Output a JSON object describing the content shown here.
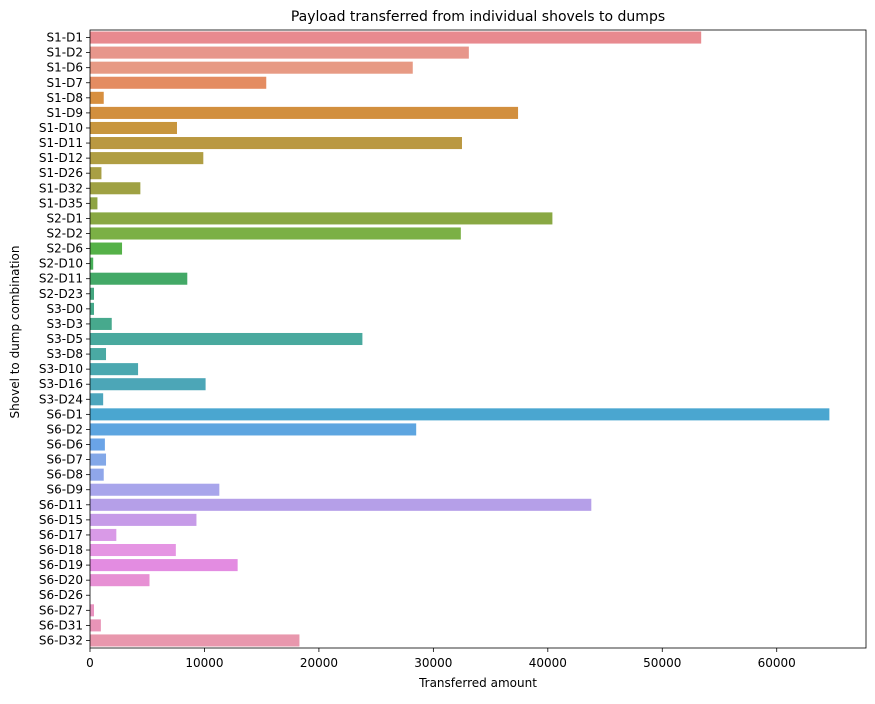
{
  "chart_data": {
    "type": "bar",
    "orientation": "horizontal",
    "title": "Payload transferred from individual shovels to dumps",
    "xlabel": "Transferred amount",
    "ylabel": "Shovel to dump combination",
    "xlim": [
      0,
      67800
    ],
    "x_ticks": [
      "0",
      "10000",
      "20000",
      "30000",
      "40000",
      "50000",
      "60000"
    ],
    "x_tick_values": [
      0,
      10000,
      20000,
      30000,
      40000,
      50000,
      60000
    ],
    "grid": false,
    "legend": "none",
    "categories": [
      "S1-D1",
      "S1-D2",
      "S1-D6",
      "S1-D7",
      "S1-D8",
      "S1-D9",
      "S1-D10",
      "S1-D11",
      "S1-D12",
      "S1-D26",
      "S1-D32",
      "S1-D35",
      "S2-D1",
      "S2-D2",
      "S2-D6",
      "S2-D10",
      "S2-D11",
      "S2-D23",
      "S3-D0",
      "S3-D3",
      "S3-D5",
      "S3-D8",
      "S3-D10",
      "S3-D16",
      "S3-D24",
      "S6-D1",
      "S6-D2",
      "S6-D6",
      "S6-D7",
      "S6-D8",
      "S6-D9",
      "S6-D11",
      "S6-D15",
      "S6-D17",
      "S6-D18",
      "S6-D19",
      "S6-D20",
      "S6-D26",
      "S6-D27",
      "S6-D31",
      "S6-D32"
    ],
    "values": [
      53400,
      33100,
      28200,
      15400,
      1200,
      37400,
      7600,
      32500,
      9900,
      1000,
      4400,
      650,
      40400,
      32400,
      2800,
      280,
      8500,
      350,
      350,
      1900,
      23800,
      1400,
      4200,
      10100,
      1150,
      64600,
      28500,
      1300,
      1400,
      1200,
      11300,
      43800,
      9300,
      2300,
      7500,
      12900,
      5200,
      0,
      350,
      950,
      18300
    ],
    "colors": [
      "#e88a8f",
      "#e7968b",
      "#e79a84",
      "#e48c61",
      "#d78f3f",
      "#d28f3e",
      "#c8963e",
      "#ba9841",
      "#b09e43",
      "#a89f44",
      "#9fa143",
      "#8ea442",
      "#89a843",
      "#7bb045",
      "#55b148",
      "#46b058",
      "#43a967",
      "#44a77f",
      "#45a98a",
      "#47a98d",
      "#49a99e",
      "#4aa9a3",
      "#4ba8b0",
      "#4ca6b7",
      "#4da6bd",
      "#4aa6d0",
      "#5da5e0",
      "#6aa4e7",
      "#83a8e8",
      "#8fa6ea",
      "#a8a5eb",
      "#b59fe8",
      "#c69be8",
      "#d99ae7",
      "#e595e3",
      "#e38ce1",
      "#e790d4",
      "#e793c9",
      "#e993c0",
      "#e894b7",
      "#e897ad"
    ]
  }
}
